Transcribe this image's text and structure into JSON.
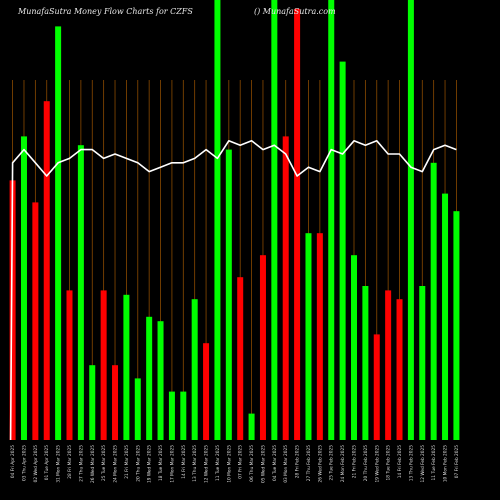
{
  "chart_data": {
    "type": "bar",
    "title": "MunafaSutra  Money Flow  Charts for CZFS",
    "subtitle": "() MunafaSutra.com",
    "colors": {
      "up": "#00ff00",
      "down": "#ff0000",
      "line": "#ffffff",
      "grid": "#8a4a00",
      "background": "#000000"
    },
    "ylim": [
      0,
      100
    ],
    "categories": [
      "04 Fri Apr 2025",
      "03 Thu Apr 2025",
      "02 Wed Apr 2025",
      "01 Tue Apr 2025",
      "31 Mon Mar 2025",
      "28 Fri Mar 2025",
      "27 Thu Mar 2025",
      "26 Wed Mar 2025",
      "25 Tue Mar 2025",
      "24 Mon Mar 2025",
      "21 Fri Mar 2025",
      "20 Thu Mar 2025",
      "19 Wed Mar 2025",
      "18 Tue Mar 2025",
      "17 Mon Mar 2025",
      "14 Fri Mar 2025",
      "13 Thu Mar 2025",
      "12 Wed Mar 2025",
      "11 Tue Mar 2025",
      "10 Mon Mar 2025",
      "07 Fri Mar 2025",
      "06 Thu Mar 2025",
      "05 Wed Mar 2025",
      "04 Tue Mar 2025",
      "03 Mon Mar 2025",
      "28 Fri Feb 2025",
      "27 Thu Feb 2025",
      "26 Wed Feb 2025",
      "25 Tue Feb 2025",
      "24 Mon Feb 2025",
      "21 Fri Feb 2025",
      "20 Thu Feb 2025",
      "19 Wed Feb 2025",
      "18 Tue Feb 2025",
      "14 Fri Feb 2025",
      "13 Thu Feb 2025",
      "12 Wed Feb 2025",
      "11 Tue Feb 2025",
      "10 Mon Feb 2025",
      "07 Fri Feb 2025"
    ],
    "series": [
      {
        "values": [
          59,
          69,
          54,
          77,
          94,
          34,
          67,
          17,
          34,
          17,
          33,
          14,
          28,
          27,
          11,
          11,
          32,
          22,
          100,
          66,
          37,
          6,
          42,
          100,
          69,
          98,
          47,
          47,
          100,
          86,
          42,
          35,
          24,
          34,
          32,
          100,
          35,
          63,
          56,
          52
        ],
        "directions": [
          "down",
          "up",
          "down",
          "down",
          "up",
          "down",
          "up",
          "up",
          "down",
          "down",
          "up",
          "up",
          "up",
          "up",
          "up",
          "up",
          "up",
          "down",
          "up",
          "up",
          "down",
          "up",
          "down",
          "up",
          "down",
          "down",
          "up",
          "down",
          "up",
          "up",
          "up",
          "up",
          "down",
          "down",
          "down",
          "up",
          "up",
          "up",
          "up",
          "up"
        ]
      },
      {
        "values": [
          63,
          66,
          63,
          60,
          63,
          64,
          66,
          66,
          64,
          65,
          64,
          63,
          61,
          62,
          63,
          63,
          64,
          66,
          64,
          68,
          67,
          68,
          66,
          67,
          65,
          60,
          62,
          61,
          66,
          65,
          68,
          67,
          68,
          65,
          65,
          62,
          61,
          66,
          67,
          66
        ]
      }
    ]
  }
}
